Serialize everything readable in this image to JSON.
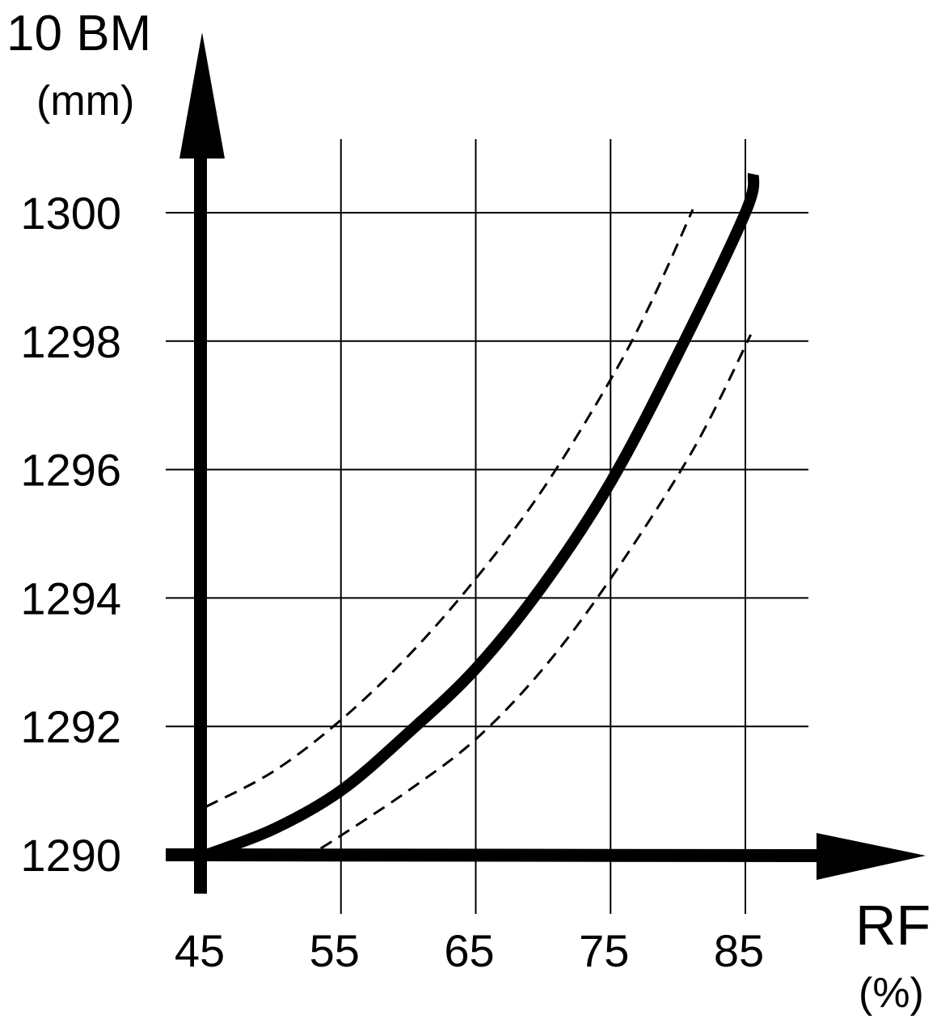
{
  "chart_data": {
    "type": "line",
    "ylabel": "10 BM",
    "yunit": "(mm)",
    "xlabel": "RF",
    "xunit": "(%)",
    "xlim": [
      45,
      85
    ],
    "ylim": [
      1290,
      1300
    ],
    "xticks": [
      "45",
      "55",
      "65",
      "75",
      "85"
    ],
    "yticks": [
      "1290",
      "1292",
      "1294",
      "1296",
      "1298",
      "1300"
    ],
    "grid": true,
    "series": [
      {
        "style": "solid",
        "x": [
          45,
          50,
          55,
          60,
          65,
          70,
          75,
          80,
          85,
          85.6
        ],
        "y": [
          1290,
          1290.4,
          1291.0,
          1291.9,
          1292.9,
          1294.2,
          1295.8,
          1297.8,
          1300.0,
          1300.6
        ]
      },
      {
        "style": "dashed",
        "x": [
          45,
          50,
          55,
          60,
          65,
          70,
          75,
          78,
          81.1
        ],
        "y": [
          1290.75,
          1291.3,
          1292.1,
          1293.1,
          1294.3,
          1295.7,
          1297.4,
          1298.6,
          1300.05
        ]
      },
      {
        "style": "dashed",
        "x": [
          53.5,
          55,
          60,
          65,
          70,
          75,
          81.1,
          85.4
        ],
        "y": [
          1290.1,
          1290.3,
          1291.0,
          1291.8,
          1292.9,
          1294.3,
          1296.3,
          1298.1
        ]
      }
    ],
    "colors": {
      "line": "#000000",
      "background": "#ffffff"
    }
  }
}
